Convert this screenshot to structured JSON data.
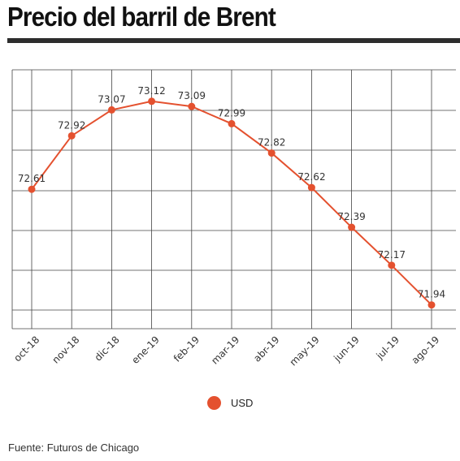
{
  "title": "Precio del barril de Brent",
  "source": "Fuente: Futuros de Chicago",
  "colors": {
    "series": "#e4512f",
    "grid": "#444444",
    "rule": "#2d2d2d"
  },
  "chart_data": {
    "type": "line",
    "title": "Precio del barril de Brent",
    "xlabel": "",
    "ylabel": "",
    "categories": [
      "oct-18",
      "nov-18",
      "dic-18",
      "ene-19",
      "feb-19",
      "mar-19",
      "abr-19",
      "may-19",
      "jun-19",
      "jul-19",
      "ago-19"
    ],
    "series": [
      {
        "name": "USD",
        "values": [
          72.61,
          72.92,
          73.07,
          73.12,
          73.09,
          72.99,
          72.82,
          72.62,
          72.39,
          72.17,
          71.94
        ]
      }
    ],
    "ylim": [
      71.8,
      73.3
    ],
    "grid": true,
    "legend": "bottom-center",
    "data_labels": true
  }
}
